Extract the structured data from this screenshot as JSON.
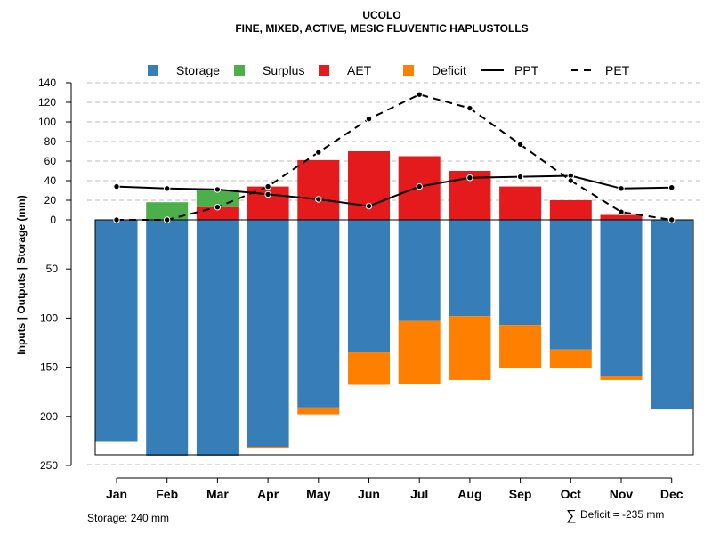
{
  "chart_data": {
    "type": "bar",
    "title": "UCOLO",
    "subtitle": "FINE, MIXED, ACTIVE, MESIC FLUVENTIC HAPLUSTOLLS",
    "ylabel": "Inputs | Outputs | Storage     (mm)",
    "categories": [
      "Jan",
      "Feb",
      "Mar",
      "Apr",
      "May",
      "Jun",
      "Jul",
      "Aug",
      "Sep",
      "Oct",
      "Nov",
      "Dec"
    ],
    "upper_ticks": [
      "140",
      "120",
      "100",
      "80",
      "60",
      "40",
      "20",
      "0"
    ],
    "lower_ticks": [
      "50",
      "100",
      "150",
      "200",
      "250"
    ],
    "ylim_upper": [
      0,
      140
    ],
    "ylim_lower": [
      0,
      250
    ],
    "grid": true,
    "legend_position": "top",
    "legend": [
      {
        "key": "storage",
        "label": "Storage",
        "kind": "box",
        "color": "#377EB8"
      },
      {
        "key": "surplus",
        "label": "Surplus",
        "kind": "box",
        "color": "#4DAF4A"
      },
      {
        "key": "aet",
        "label": "AET",
        "kind": "box",
        "color": "#E41A1C"
      },
      {
        "key": "deficit",
        "label": "Deficit",
        "kind": "box",
        "color": "#FF7F00"
      },
      {
        "key": "ppt",
        "label": "PPT",
        "kind": "solid"
      },
      {
        "key": "pet",
        "label": "PET",
        "kind": "dashed"
      }
    ],
    "series": [
      {
        "name": "AET",
        "values": [
          0,
          0,
          13,
          34,
          61,
          70,
          65,
          50,
          34,
          20,
          5,
          0
        ]
      },
      {
        "name": "Surplus",
        "values": [
          0,
          18,
          18,
          0,
          0,
          0,
          0,
          0,
          0,
          0,
          0,
          0
        ]
      },
      {
        "name": "Storage",
        "values": [
          226,
          240,
          240,
          231,
          191,
          135,
          103,
          98,
          107,
          132,
          159,
          193
        ]
      },
      {
        "name": "Deficit",
        "values": [
          0,
          0,
          0,
          1,
          7,
          33,
          64,
          65,
          44,
          19,
          4,
          0
        ]
      },
      {
        "name": "PPT",
        "values": [
          34,
          32,
          31,
          26,
          21,
          14,
          34,
          43,
          44,
          45,
          32,
          33
        ]
      },
      {
        "name": "PET",
        "values": [
          0,
          0,
          13,
          34,
          69,
          103,
          128,
          114,
          77,
          40,
          8,
          0
        ]
      }
    ],
    "notes": {
      "storage": "Storage: 240 mm",
      "deficit_symbol": "∑",
      "deficit": "Deficit = -235 mm"
    }
  }
}
